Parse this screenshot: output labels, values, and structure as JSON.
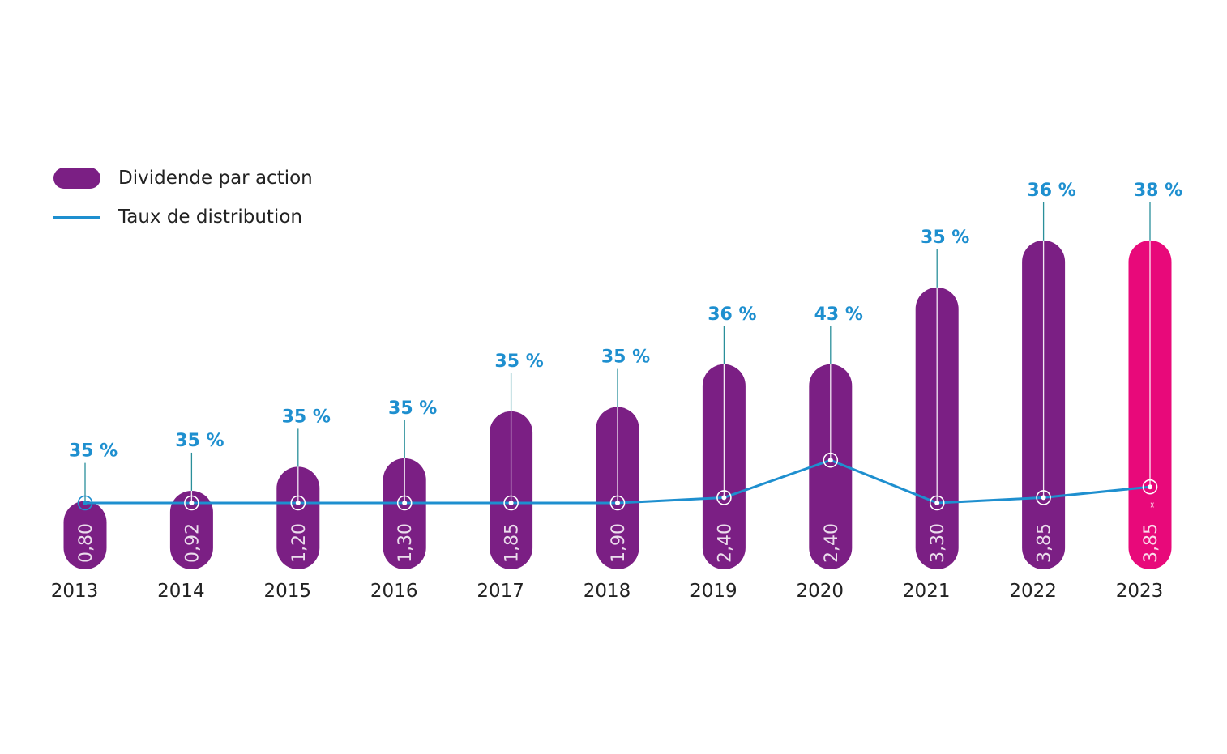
{
  "legend": {
    "bar_label": "Dividende par action",
    "line_label": "Taux de distribution"
  },
  "colors": {
    "bar": "#7B1F84",
    "bar_highlight": "#E8097A",
    "line": "#1E8FCF",
    "pct_text": "#1E8FCF"
  },
  "chart_data": {
    "type": "bar",
    "categories": [
      "2013",
      "2014",
      "2015",
      "2016",
      "2017",
      "2018",
      "2019",
      "2020",
      "2021",
      "2022",
      "2023"
    ],
    "series": [
      {
        "name": "Dividende par action",
        "type": "bar",
        "values": [
          0.8,
          0.92,
          1.2,
          1.3,
          1.85,
          1.9,
          2.4,
          2.4,
          3.3,
          3.85,
          3.85
        ],
        "value_labels": [
          "0,80",
          "0,92",
          "1,20",
          "1,30",
          "1,85",
          "1,90",
          "2,40",
          "2,40",
          "3,30",
          "3,85",
          "3,85"
        ],
        "highlight_index": 10,
        "highlight_note": "*"
      },
      {
        "name": "Taux de distribution",
        "type": "line",
        "values": [
          35,
          35,
          35,
          35,
          35,
          35,
          36,
          43,
          35,
          36,
          38
        ],
        "value_labels": [
          "35 %",
          "35 %",
          "35 %",
          "35 %",
          "35 %",
          "35 %",
          "36 %",
          "43 %",
          "35 %",
          "36 %",
          "38 %"
        ]
      }
    ]
  }
}
